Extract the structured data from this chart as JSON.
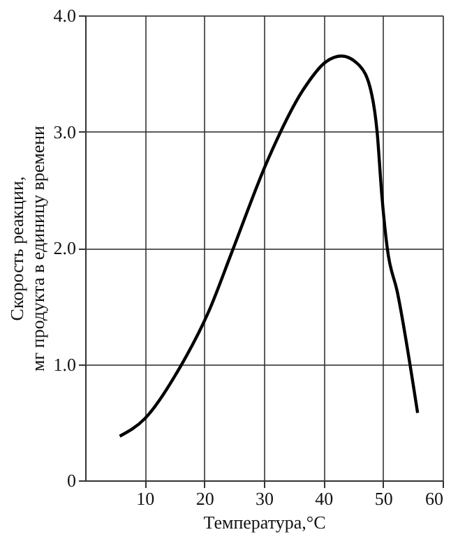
{
  "chart_data": {
    "type": "line",
    "xlabel": "Температура,°C",
    "ylabel": "Скорость реакции, мг продукта в единицу времени",
    "x": [
      5.8,
      10,
      16,
      20.8,
      24.6,
      30.6,
      36.6,
      40.4,
      43,
      46,
      48.1,
      49,
      49.8,
      50.7,
      52.4,
      55.8
    ],
    "series": [
      {
        "color": "#000000",
        "values": [
          0.38,
          0.53,
          0.98,
          1.46,
          1.96,
          2.75,
          3.36,
          3.6,
          3.65,
          3.57,
          3.32,
          3.0,
          2.45,
          2.0,
          1.62,
          0.58
        ]
      }
    ],
    "xlim": [
      0,
      60
    ],
    "xticks": [
      10,
      20,
      30,
      40,
      50,
      60
    ],
    "ylim": [
      0,
      4
    ],
    "yticks": [
      0,
      {
        "value": 1,
        "label": "1.0"
      },
      {
        "value": 2,
        "label": "2.0"
      },
      {
        "value": 3,
        "label": "3.0"
      },
      {
        "value": 4,
        "label": "4.0"
      }
    ],
    "grid": true,
    "marker": "none",
    "line_style": "solid"
  }
}
